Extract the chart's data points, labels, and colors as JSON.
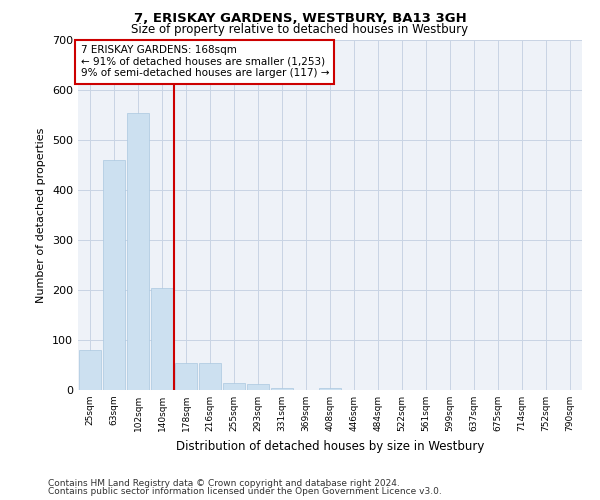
{
  "title": "7, ERISKAY GARDENS, WESTBURY, BA13 3GH",
  "subtitle": "Size of property relative to detached houses in Westbury",
  "xlabel": "Distribution of detached houses by size in Westbury",
  "ylabel": "Number of detached properties",
  "footnote1": "Contains HM Land Registry data © Crown copyright and database right 2024.",
  "footnote2": "Contains public sector information licensed under the Open Government Licence v3.0.",
  "annotation_line1": "7 ERISKAY GARDENS: 168sqm",
  "annotation_line2": "← 91% of detached houses are smaller (1,253)",
  "annotation_line3": "9% of semi-detached houses are larger (117) →",
  "bar_color": "#cce0f0",
  "bar_edge_color": "#aac8e0",
  "vline_color": "#cc0000",
  "annotation_box_edgecolor": "#cc0000",
  "background_color": "#eef2f8",
  "grid_color": "#c8d4e4",
  "categories": [
    "25sqm",
    "63sqm",
    "102sqm",
    "140sqm",
    "178sqm",
    "216sqm",
    "255sqm",
    "293sqm",
    "331sqm",
    "369sqm",
    "408sqm",
    "446sqm",
    "484sqm",
    "522sqm",
    "561sqm",
    "599sqm",
    "637sqm",
    "675sqm",
    "714sqm",
    "752sqm",
    "790sqm"
  ],
  "values": [
    80,
    460,
    555,
    205,
    55,
    55,
    15,
    12,
    5,
    0,
    5,
    0,
    0,
    0,
    0,
    0,
    0,
    0,
    0,
    0,
    0
  ],
  "vline_x": 3.5,
  "ylim": [
    0,
    700
  ],
  "yticks": [
    0,
    100,
    200,
    300,
    400,
    500,
    600,
    700
  ]
}
